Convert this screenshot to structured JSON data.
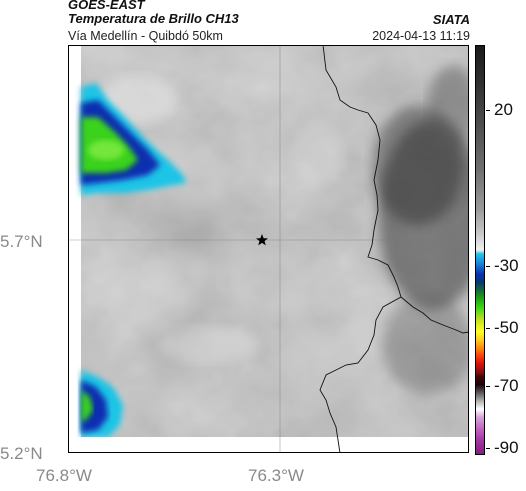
{
  "header": {
    "satellite": "GOES-EAST",
    "product": "Temperatura de Brillo CH13",
    "region": "Vía Medellín - Quibdó 50km",
    "organization": "SIATA",
    "datetime": "2024-04-13 11:19"
  },
  "map": {
    "lat_labels": [
      "5.7°N",
      "5.2°N"
    ],
    "lon_labels": [
      "76.8°W",
      "76.3°W"
    ],
    "marker": "star-icon",
    "colors": {
      "cloud_dark": "#2a2a2a",
      "cloud_mid": "#8e8e8e",
      "cloud_light": "#cfcfcf",
      "cold_blue": "#0b2fb0",
      "cold_cyan": "#1fc4e6",
      "cold_green": "#3ad21a"
    }
  },
  "colorbar": {
    "tick_labels": [
      "20",
      "-30",
      "-50",
      "-70",
      "-90"
    ]
  }
}
